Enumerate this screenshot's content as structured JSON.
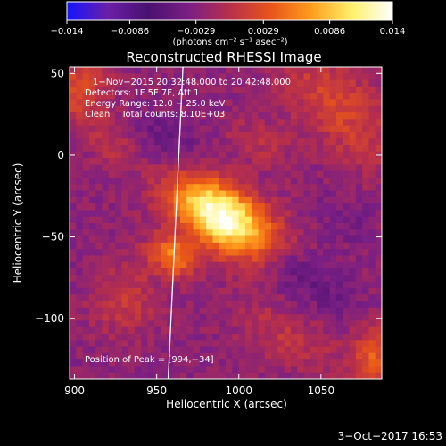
{
  "chart_data": {
    "type": "heatmap",
    "title": "Reconstructed RHESSI Image",
    "xlabel": "Heliocentric X (arcsec)",
    "ylabel": "Heliocentric Y (arcsec)",
    "xlim": [
      897,
      1087
    ],
    "ylim": [
      -137,
      54
    ],
    "xticks": [
      900,
      950,
      1000,
      1050
    ],
    "yticks": [
      50,
      0,
      -50,
      -100
    ],
    "colorbar": {
      "min": -0.014,
      "max": 0.014,
      "tick_values": [
        -0.014,
        -0.0086,
        -0.0029,
        0.0029,
        0.0086,
        0.014
      ],
      "tick_labels": [
        "−0.014",
        "−0.0086",
        "−0.0029",
        "0.0029",
        "0.0086",
        "0.014"
      ],
      "unit_label": "(photons cm⁻² s⁻¹ asec⁻²)",
      "colors": [
        "#1414ff",
        "#6a1fa8",
        "#4a1070",
        "#7b1f84",
        "#b82f4a",
        "#e8541a",
        "#ff9c1c",
        "#fff06a",
        "#ffffff"
      ]
    },
    "info_lines": [
      "1−Nov−2015 20:32:48.000 to 20:42:48.000",
      "Detectors: 1F 5F 7F, Att 1",
      "Energy Range: 12.0 − 25.0 keV",
      "Clean    Total counts: 8.10E+03"
    ],
    "peak": {
      "x": 994,
      "y": -34,
      "label": "Position of Peak = [994,−34]"
    },
    "limb": [
      [
        966,
        54
      ],
      [
        957,
        -137
      ]
    ],
    "background": "#000000"
  },
  "footer": {
    "date": "3−Oct−2017 16:53"
  }
}
